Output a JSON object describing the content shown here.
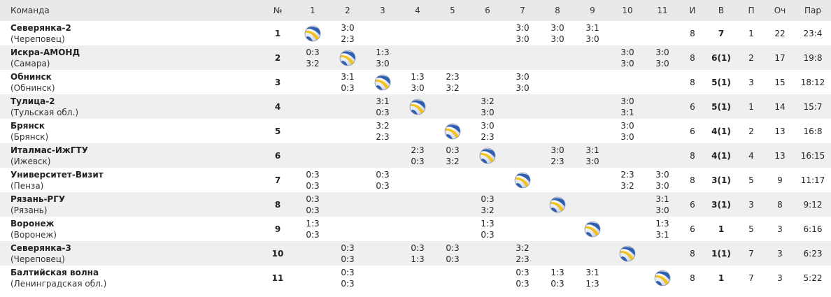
{
  "headers": [
    "Команда",
    "№",
    "1",
    "2",
    "3",
    "4",
    "5",
    "6",
    "7",
    "8",
    "9",
    "10",
    "11",
    "И",
    "В",
    "П",
    "Оч",
    "Пар"
  ],
  "teams": [
    {
      "name": "Северянка-2",
      "city": "(Череповец)",
      "num": "1",
      "results": [
        null,
        [
          "3:0",
          "2:3"
        ],
        null,
        null,
        null,
        null,
        [
          "3:0",
          "3:0"
        ],
        [
          "3:0",
          "3:0"
        ],
        [
          "3:1",
          "3:0"
        ],
        null,
        null
      ],
      "games": "8",
      "wins": "7",
      "losses": "1",
      "points": "22",
      "sets": "23:4"
    },
    {
      "name": "Искра-АМОНД",
      "city": "(Самара)",
      "num": "2",
      "results": [
        [
          "0:3",
          "3:2"
        ],
        null,
        [
          "1:3",
          "3:0"
        ],
        null,
        null,
        null,
        null,
        null,
        null,
        [
          "3:0",
          "3:0"
        ],
        [
          "3:0",
          "3:0"
        ]
      ],
      "games": "8",
      "wins": "6(1)",
      "losses": "2",
      "points": "17",
      "sets": "19:8"
    },
    {
      "name": "Обнинск",
      "city": "(Обнинск)",
      "num": "3",
      "results": [
        null,
        [
          "3:1",
          "0:3"
        ],
        null,
        [
          "1:3",
          "3:0"
        ],
        [
          "2:3",
          "3:2"
        ],
        null,
        [
          "3:0",
          "3:0"
        ],
        null,
        null,
        null,
        null
      ],
      "games": "8",
      "wins": "5(1)",
      "losses": "3",
      "points": "15",
      "sets": "18:12"
    },
    {
      "name": "Тулица-2",
      "city": "(Тульская обл.)",
      "num": "4",
      "results": [
        null,
        null,
        [
          "3:1",
          "0:3"
        ],
        null,
        null,
        [
          "3:2",
          "3:0"
        ],
        null,
        null,
        null,
        [
          "3:0",
          "3:1"
        ],
        null
      ],
      "games": "6",
      "wins": "5(1)",
      "losses": "1",
      "points": "14",
      "sets": "15:7"
    },
    {
      "name": "Брянск",
      "city": "(Брянск)",
      "num": "5",
      "results": [
        null,
        null,
        [
          "3:2",
          "2:3"
        ],
        null,
        null,
        [
          "3:0",
          "2:3"
        ],
        null,
        null,
        null,
        [
          "3:0",
          "3:0"
        ],
        null
      ],
      "games": "6",
      "wins": "4(1)",
      "losses": "2",
      "points": "13",
      "sets": "16:8"
    },
    {
      "name": "Италмас-ИжГТУ",
      "city": "(Ижевск)",
      "num": "6",
      "results": [
        null,
        null,
        null,
        [
          "2:3",
          "0:3"
        ],
        [
          "0:3",
          "3:2"
        ],
        null,
        null,
        [
          "3:0",
          "2:3"
        ],
        [
          "3:1",
          "3:0"
        ],
        null,
        null
      ],
      "games": "8",
      "wins": "4(1)",
      "losses": "4",
      "points": "13",
      "sets": "16:15"
    },
    {
      "name": "Университет-Визит",
      "city": "(Пенза)",
      "num": "7",
      "results": [
        [
          "0:3",
          "0:3"
        ],
        null,
        [
          "0:3",
          "0:3"
        ],
        null,
        null,
        null,
        null,
        null,
        null,
        [
          "2:3",
          "3:2"
        ],
        [
          "3:0",
          "3:0"
        ]
      ],
      "games": "8",
      "wins": "3(1)",
      "losses": "5",
      "points": "9",
      "sets": "11:17"
    },
    {
      "name": "Рязань-РГУ",
      "city": "(Рязань)",
      "num": "8",
      "results": [
        [
          "0:3",
          "0:3"
        ],
        null,
        null,
        null,
        null,
        [
          "0:3",
          "3:2"
        ],
        null,
        null,
        null,
        null,
        [
          "3:1",
          "3:0"
        ]
      ],
      "games": "6",
      "wins": "3(1)",
      "losses": "3",
      "points": "8",
      "sets": "9:12"
    },
    {
      "name": "Воронеж",
      "city": "(Воронеж)",
      "num": "9",
      "results": [
        [
          "1:3",
          "0:3"
        ],
        null,
        null,
        null,
        null,
        [
          "1:3",
          "0:3"
        ],
        null,
        null,
        null,
        null,
        [
          "1:3",
          "3:1"
        ]
      ],
      "games": "6",
      "wins": "1",
      "losses": "5",
      "points": "3",
      "sets": "6:16"
    },
    {
      "name": "Северянка-3",
      "city": "(Череповец)",
      "num": "10",
      "results": [
        null,
        [
          "0:3",
          "0:3"
        ],
        null,
        [
          "0:3",
          "1:3"
        ],
        [
          "0:3",
          "0:3"
        ],
        null,
        [
          "3:2",
          "2:3"
        ],
        null,
        null,
        null,
        null
      ],
      "games": "8",
      "wins": "1(1)",
      "losses": "7",
      "points": "3",
      "sets": "6:23"
    },
    {
      "name": "Балтийская волна",
      "city": "(Ленинградская обл.)",
      "num": "11",
      "results": [
        null,
        [
          "0:3",
          "0:3"
        ],
        null,
        null,
        null,
        null,
        [
          "0:3",
          "0:3"
        ],
        [
          "1:3",
          "0:3"
        ],
        [
          "3:1",
          "1:3"
        ],
        null,
        null
      ],
      "games": "8",
      "wins": "1",
      "losses": "7",
      "points": "3",
      "sets": "5:22"
    }
  ],
  "icons": {
    "self_match": "volleyball-icon"
  },
  "colors": {
    "header_bg": "#e9e9e9",
    "alt_row_bg": "#efefef",
    "ball_blue": "#2f5fb3",
    "ball_yellow": "#f2c21b"
  }
}
